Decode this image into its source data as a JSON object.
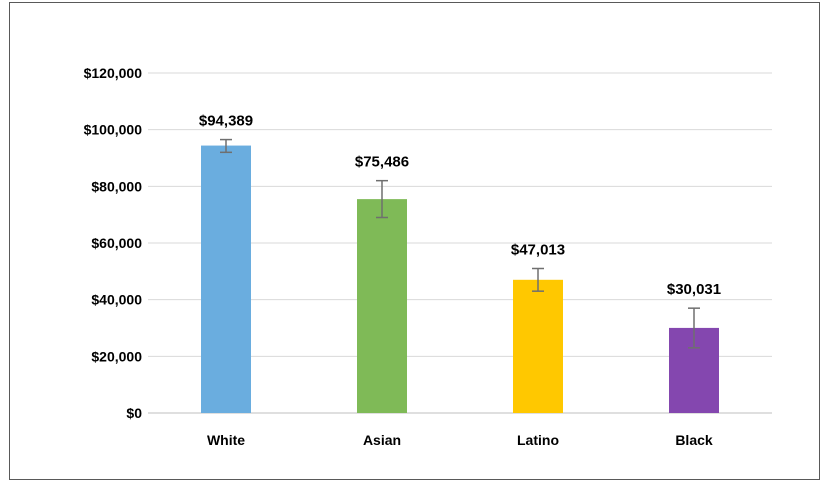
{
  "chart_data": {
    "type": "bar",
    "categories": [
      "White",
      "Asian",
      "Latino",
      "Black"
    ],
    "values": [
      94389,
      75486,
      47013,
      30031
    ],
    "value_labels": [
      "$94,389",
      "$75,486",
      "$47,013",
      "$30,031"
    ],
    "error_bars": [
      {
        "low": 92000,
        "high": 96500
      },
      {
        "low": 69000,
        "high": 82000
      },
      {
        "low": 43000,
        "high": 51000
      },
      {
        "low": 23000,
        "high": 37000
      }
    ],
    "bar_colors": [
      "#6aaddf",
      "#7fba57",
      "#ffc800",
      "#8447af"
    ],
    "error_bar_color": "#6f6f6f",
    "ylim": [
      0,
      120000
    ],
    "yticks": [
      0,
      20000,
      40000,
      60000,
      80000,
      100000,
      120000
    ],
    "ytick_labels": [
      "$0",
      "$20,000",
      "$40,000",
      "$60,000",
      "$80,000",
      "$100,000",
      "$120,000"
    ],
    "grid": true,
    "legend": "none"
  }
}
